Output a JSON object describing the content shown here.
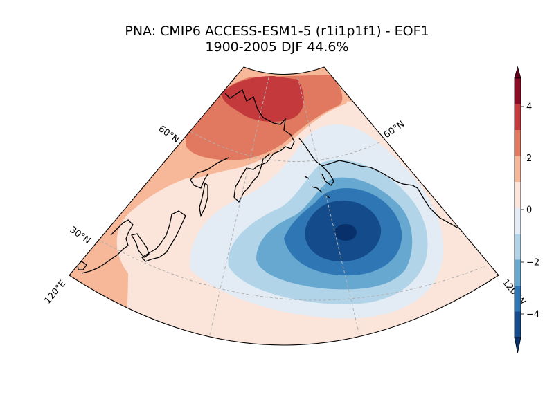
{
  "title": {
    "line1": "PNA: CMIP6 ACCESS-ESM1-5 (r1i1p1f1) - EOF1",
    "line2": "1900-2005 DJF 44.6%"
  },
  "gridline_labels": {
    "lat_60_left": "60°N",
    "lat_60_right": "60°N",
    "lat_30_left": "30°N",
    "lon_120e": "120°E",
    "lon_120w": "120°W"
  },
  "colorbar": {
    "ticks": [
      "4",
      "2",
      "0",
      "−2",
      "−4"
    ],
    "levels": [
      {
        "range": "4 to 5",
        "color": "#8b0a25"
      },
      {
        "range": "3 to 4",
        "color": "#c43a3c"
      },
      {
        "range": "2 to 3",
        "color": "#e0795f"
      },
      {
        "range": "1 to 2",
        "color": "#f7b799"
      },
      {
        "range": "0 to 1",
        "color": "#fbe5da"
      },
      {
        "range": "-1 to 0",
        "color": "#e3ecf5"
      },
      {
        "range": "-2 to -1",
        "color": "#b2d4e8"
      },
      {
        "range": "-3 to -2",
        "color": "#66a8d0"
      },
      {
        "range": "-4 to -3",
        "color": "#2f76b5"
      },
      {
        "range": "-5 to -4",
        "color": "#144b8a"
      }
    ],
    "under_color": "#08306b",
    "over_color": "#67001f"
  },
  "map": {
    "field": "EOF1 pattern (PNA)",
    "colors": {
      "land_outline": "#000000",
      "grid": "#b0b0b0"
    }
  }
}
